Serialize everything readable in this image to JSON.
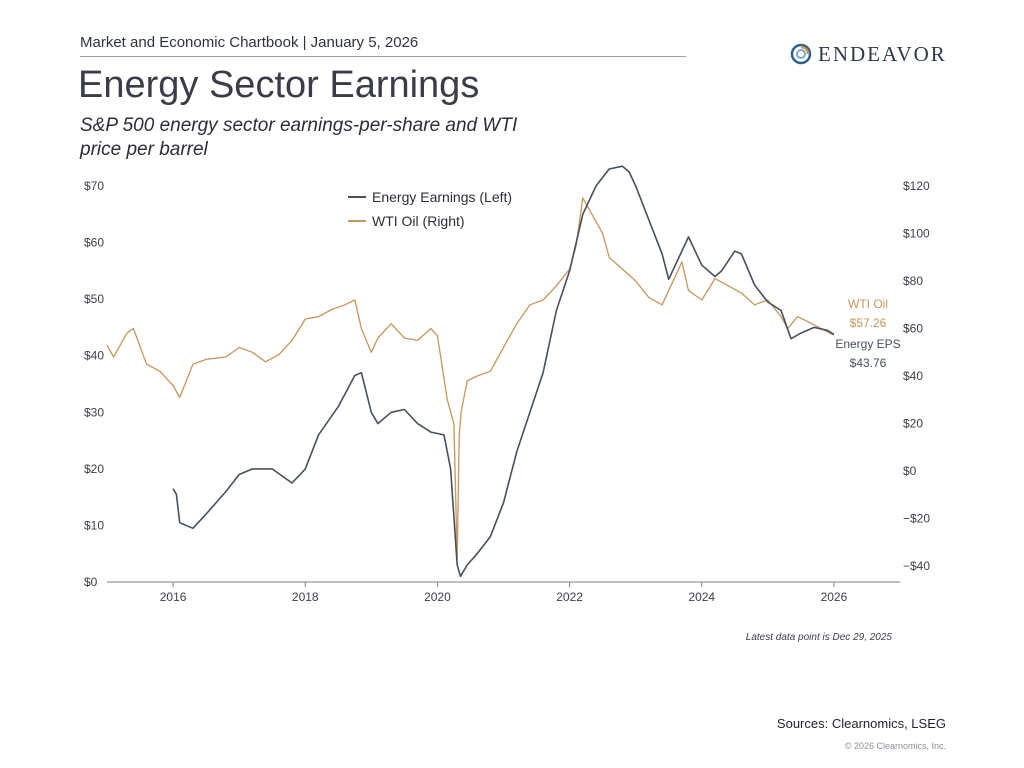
{
  "header": {
    "text": "Market and Economic Chartbook | January 5, 2026",
    "logo_text": "ENDEAVOR"
  },
  "title": "Energy Sector Earnings",
  "subtitle": "S&P 500 energy sector earnings-per-share and WTI price per barrel",
  "footnote": "Latest data point is Dec 29, 2025",
  "sources": "Sources: Clearnomics, LSEG",
  "copyright": "© 2026 Clearnomics, Inc.",
  "colors": {
    "eps": "#46505f",
    "oil": "#c8955a",
    "axis": "#7a7f88",
    "tick_text": "#3b3f4a"
  },
  "chart_data": {
    "type": "line",
    "x_axis": {
      "range": [
        2015.0,
        2027.0
      ],
      "ticks": [
        2016,
        2018,
        2020,
        2022,
        2024,
        2026
      ]
    },
    "y_left": {
      "range": [
        0,
        70
      ],
      "ticks": [
        0,
        10,
        20,
        30,
        40,
        50,
        60,
        70
      ],
      "tick_labels": [
        "$0",
        "$10",
        "$20",
        "$30",
        "$40",
        "$50",
        "$60",
        "$70"
      ]
    },
    "y_right": {
      "range": [
        -46.7,
        120
      ],
      "ticks": [
        -40,
        -20,
        0,
        20,
        40,
        60,
        80,
        100,
        120
      ],
      "tick_labels": [
        "−$40",
        "−$20",
        "$0",
        "$20",
        "$40",
        "$60",
        "$80",
        "$100",
        "$120"
      ]
    },
    "legend": {
      "position": "top-center"
    },
    "series": [
      {
        "name": "Energy Earnings (Left)",
        "axis": "left",
        "end_label": "Energy EPS",
        "end_value_label": "$43.76",
        "x": [
          2016.0,
          2016.05,
          2016.1,
          2016.3,
          2016.5,
          2016.8,
          2017.0,
          2017.2,
          2017.5,
          2017.8,
          2018.0,
          2018.2,
          2018.5,
          2018.75,
          2018.85,
          2019.0,
          2019.1,
          2019.3,
          2019.5,
          2019.7,
          2019.9,
          2020.1,
          2020.2,
          2020.3,
          2020.35,
          2020.45,
          2020.6,
          2020.8,
          2021.0,
          2021.2,
          2021.4,
          2021.6,
          2021.8,
          2022.0,
          2022.2,
          2022.4,
          2022.6,
          2022.8,
          2022.9,
          2023.0,
          2023.2,
          2023.4,
          2023.5,
          2023.6,
          2023.8,
          2024.0,
          2024.2,
          2024.3,
          2024.5,
          2024.6,
          2024.8,
          2025.0,
          2025.2,
          2025.35,
          2025.5,
          2025.7,
          2025.9,
          2026.0
        ],
        "values": [
          16.5,
          15.5,
          10.5,
          9.5,
          12.0,
          16.0,
          19.0,
          20.0,
          20.0,
          17.5,
          20.0,
          26.0,
          31.0,
          36.5,
          37.0,
          30.0,
          28.0,
          30.0,
          30.5,
          28.0,
          26.5,
          26.0,
          20.0,
          3.0,
          1.0,
          3.0,
          5.0,
          8.0,
          14.0,
          23.0,
          30.0,
          37.0,
          48.0,
          55.0,
          65.0,
          70.0,
          73.0,
          73.5,
          72.5,
          70.0,
          64.0,
          58.0,
          53.5,
          56.0,
          61.0,
          56.0,
          54.0,
          55.0,
          58.5,
          58.0,
          52.5,
          49.5,
          48.0,
          43.0,
          44.0,
          45.0,
          44.5,
          43.76
        ]
      },
      {
        "name": "WTI Oil (Right)",
        "axis": "right",
        "end_label": "WTI Oil",
        "end_value_label": "$57.26",
        "x": [
          2015.0,
          2015.1,
          2015.3,
          2015.4,
          2015.6,
          2015.8,
          2016.0,
          2016.1,
          2016.3,
          2016.5,
          2016.8,
          2017.0,
          2017.2,
          2017.4,
          2017.6,
          2017.8,
          2018.0,
          2018.2,
          2018.4,
          2018.6,
          2018.75,
          2018.85,
          2019.0,
          2019.1,
          2019.3,
          2019.5,
          2019.7,
          2019.9,
          2020.0,
          2020.15,
          2020.25,
          2020.3,
          2020.33,
          2020.36,
          2020.45,
          2020.6,
          2020.8,
          2021.0,
          2021.2,
          2021.4,
          2021.6,
          2021.8,
          2022.0,
          2022.1,
          2022.2,
          2022.3,
          2022.4,
          2022.5,
          2022.6,
          2022.8,
          2023.0,
          2023.2,
          2023.4,
          2023.6,
          2023.7,
          2023.8,
          2024.0,
          2024.2,
          2024.4,
          2024.6,
          2024.8,
          2025.0,
          2025.2,
          2025.3,
          2025.45,
          2025.6,
          2025.8,
          2026.0
        ],
        "values": [
          53,
          48,
          58,
          60,
          45,
          42,
          36,
          31,
          45,
          47,
          48,
          52,
          50,
          46,
          49,
          55,
          64,
          65,
          68,
          70,
          72,
          60,
          50,
          56,
          62,
          56,
          55,
          60,
          57,
          30,
          20,
          -37,
          15,
          25,
          38,
          40,
          42,
          52,
          62,
          70,
          72,
          78,
          85,
          95,
          115,
          110,
          105,
          100,
          90,
          85,
          80,
          73,
          70,
          82,
          88,
          76,
          72,
          81,
          78,
          75,
          70,
          72,
          65,
          60,
          65,
          63,
          60,
          57.26
        ]
      }
    ]
  }
}
